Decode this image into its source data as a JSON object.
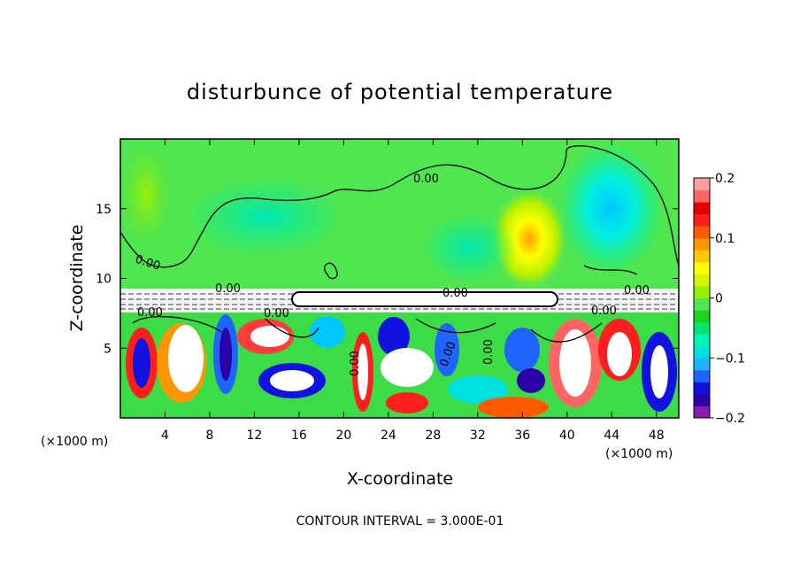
{
  "chart_data": {
    "type": "heatmap",
    "title": "disturbunce of potential temperature",
    "xlabel": "X-coordinate",
    "ylabel": "Z-coordinate",
    "x_unit_left": "(×1000 m)",
    "x_unit_right": "(×1000 m)",
    "xlim": [
      0,
      50
    ],
    "ylim": [
      0,
      20
    ],
    "x_ticks": [
      4,
      8,
      12,
      16,
      20,
      24,
      28,
      32,
      36,
      40,
      44,
      48
    ],
    "y_ticks": [
      5,
      10,
      15
    ],
    "colorbar": {
      "min": -0.2,
      "max": 0.2,
      "tick_labels": [
        "0.2",
        "0.1",
        "0",
        "−0.1",
        "−0.2"
      ],
      "tick_values": [
        0.2,
        0.1,
        0,
        -0.1,
        -0.2
      ],
      "colors": [
        "#8a1ab0",
        "#2a00a8",
        "#1212e0",
        "#1e64ff",
        "#1eb4ff",
        "#00e0e0",
        "#00f5b4",
        "#00e66e",
        "#1ed21e",
        "#50e650",
        "#96f000",
        "#d2f500",
        "#ffff00",
        "#ffc800",
        "#ff9600",
        "#ff5a00",
        "#ff1e1e",
        "#e60000",
        "#ff6464",
        "#ffa0a0"
      ]
    },
    "contour_interval_text": "CONTOUR INTERVAL = 3.000E-01",
    "contour_labels": [
      "0.00",
      "0.00",
      "0.00",
      "0.00",
      "0.00",
      "0.00",
      "0.00",
      "0.00",
      "0.00",
      "0.00",
      "0.00"
    ]
  }
}
